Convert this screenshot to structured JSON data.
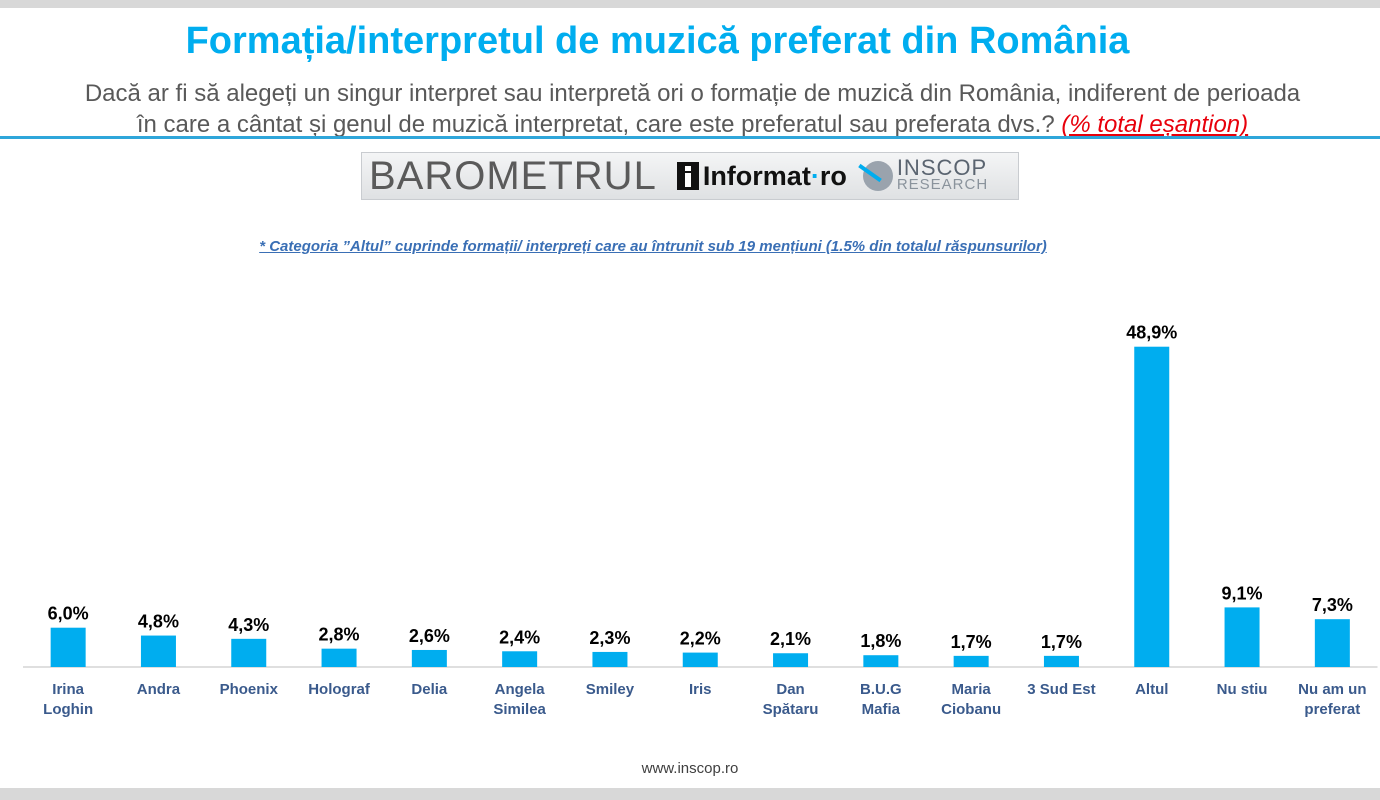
{
  "header": {
    "title": "Formația/interpretul de muzică preferat din România",
    "question_line1": "Dacă ar fi să alegeți un singur interpret sau interpretă ori o formație de muzică din România, indiferent de perioada",
    "question_line2": "în care a cântat și genul de muzică interpretat, care este preferatul sau preferata dvs.?",
    "question_note": "(% total eșantion)"
  },
  "logo": {
    "barometrul": "BAROMETRUL",
    "informat": "Informat",
    "informat_dot": "·",
    "informat_tld": "ro",
    "inscop": "INSCOP",
    "research": "RESEARCH"
  },
  "footnote": "* Categoria ”Altul” cuprinde formații/ interpreți care au întrunit sub 19 mențiuni (1.5% din totalul răspunsurilor)",
  "footer": {
    "website": "www.inscop.ro"
  },
  "colors": {
    "bar": "#00adef",
    "title": "#00adef",
    "note": "#e8000b",
    "footnote": "#3a6fb5"
  },
  "chart_data": {
    "type": "bar",
    "categories": [
      "Irina Loghin",
      "Andra",
      "Phoenix",
      "Holograf",
      "Delia",
      "Angela Similea",
      "Smiley",
      "Iris",
      "Dan Spătaru",
      "B.U.G Mafia",
      "Maria Ciobanu",
      "3 Sud Est",
      "Altul",
      "Nu stiu",
      "Nu am un preferat"
    ],
    "category_lines": [
      [
        "Irina",
        "Loghin"
      ],
      [
        "Andra"
      ],
      [
        "Phoenix"
      ],
      [
        "Holograf"
      ],
      [
        "Delia"
      ],
      [
        "Angela",
        "Similea"
      ],
      [
        "Smiley"
      ],
      [
        "Iris"
      ],
      [
        "Dan",
        "Spătaru"
      ],
      [
        "B.U.G",
        "Mafia"
      ],
      [
        "Maria",
        "Ciobanu"
      ],
      [
        "3 Sud Est"
      ],
      [
        "Altul"
      ],
      [
        "Nu stiu"
      ],
      [
        "Nu am un",
        "preferat"
      ]
    ],
    "values": [
      6.0,
      4.8,
      4.3,
      2.8,
      2.6,
      2.4,
      2.3,
      2.2,
      2.1,
      1.8,
      1.7,
      1.7,
      48.9,
      9.1,
      7.3
    ],
    "value_labels": [
      "6,0%",
      "4,8%",
      "4,3%",
      "2,8%",
      "2,6%",
      "2,4%",
      "2,3%",
      "2,2%",
      "2,1%",
      "1,8%",
      "1,7%",
      "1,7%",
      "48,9%",
      "9,1%",
      "7,3%"
    ],
    "ylim": [
      0,
      50
    ],
    "grid": false,
    "legend": "none"
  }
}
